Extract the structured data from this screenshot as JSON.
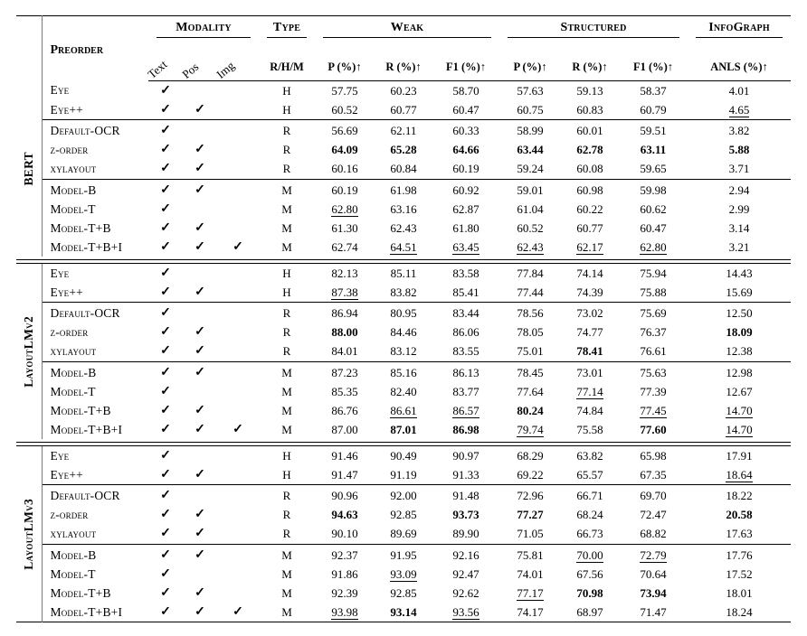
{
  "page": {
    "background": "#ffffff",
    "text_color": "#000000",
    "rule_color": "#7a7a7a",
    "line_color": "#000000"
  },
  "table": {
    "headers": {
      "preorder": "Preorder",
      "modality": "Modality",
      "modality_cols": [
        "Text",
        "Pos",
        "Img"
      ],
      "type": "Type",
      "type_sub": "R/H/M",
      "weak": "Weak",
      "structured": "Structured",
      "infograph": "InfoGraph",
      "metric_cols": [
        "P (%)↑",
        "R (%)↑",
        "F1 (%)↑"
      ],
      "anls": "ANLS (%)↑"
    },
    "checkmark_icon": "✓",
    "groups": [
      {
        "name": "BERT",
        "subgroups": [
          {
            "rows": [
              {
                "label": "Eye",
                "mods": [
                  1,
                  0,
                  0
                ],
                "type": "H",
                "vals": [
                  "57.75",
                  "60.23",
                  "58.70",
                  "57.63",
                  "59.13",
                  "58.37",
                  "4.01"
                ],
                "styles": [
                  "",
                  "",
                  "",
                  "",
                  "",
                  "",
                  ""
                ]
              },
              {
                "label": "Eye++",
                "mods": [
                  1,
                  1,
                  0
                ],
                "type": "H",
                "vals": [
                  "60.52",
                  "60.77",
                  "60.47",
                  "60.75",
                  "60.83",
                  "60.79",
                  "4.65"
                ],
                "styles": [
                  "",
                  "",
                  "",
                  "",
                  "",
                  "",
                  "u"
                ]
              }
            ]
          },
          {
            "rows": [
              {
                "label": "Default-OCR",
                "mods": [
                  1,
                  0,
                  0
                ],
                "type": "R",
                "vals": [
                  "56.69",
                  "62.11",
                  "60.33",
                  "58.99",
                  "60.01",
                  "59.51",
                  "3.82"
                ],
                "styles": [
                  "",
                  "",
                  "",
                  "",
                  "",
                  "",
                  ""
                ]
              },
              {
                "label": "z-order",
                "mods": [
                  1,
                  1,
                  0
                ],
                "type": "R",
                "vals": [
                  "64.09",
                  "65.28",
                  "64.66",
                  "63.44",
                  "62.78",
                  "63.11",
                  "5.88"
                ],
                "styles": [
                  "b",
                  "b",
                  "b",
                  "b",
                  "b",
                  "b",
                  "b"
                ]
              },
              {
                "label": "xylayout",
                "mods": [
                  1,
                  1,
                  0
                ],
                "type": "R",
                "vals": [
                  "60.16",
                  "60.84",
                  "60.19",
                  "59.24",
                  "60.08",
                  "59.65",
                  "3.71"
                ],
                "styles": [
                  "",
                  "",
                  "",
                  "",
                  "",
                  "",
                  ""
                ]
              }
            ]
          },
          {
            "rows": [
              {
                "label": "Model-B",
                "mods": [
                  1,
                  1,
                  0
                ],
                "type": "M",
                "vals": [
                  "60.19",
                  "61.98",
                  "60.92",
                  "59.01",
                  "60.98",
                  "59.98",
                  "2.94"
                ],
                "styles": [
                  "",
                  "",
                  "",
                  "",
                  "",
                  "",
                  ""
                ]
              },
              {
                "label": "Model-T",
                "mods": [
                  1,
                  0,
                  0
                ],
                "type": "M",
                "vals": [
                  "62.80",
                  "63.16",
                  "62.87",
                  "61.04",
                  "60.22",
                  "60.62",
                  "2.99"
                ],
                "styles": [
                  "u",
                  "",
                  "",
                  "",
                  "",
                  "",
                  ""
                ]
              },
              {
                "label": "Model-T+B",
                "mods": [
                  1,
                  1,
                  0
                ],
                "type": "M",
                "vals": [
                  "61.30",
                  "62.43",
                  "61.80",
                  "60.52",
                  "60.77",
                  "60.47",
                  "3.14"
                ],
                "styles": [
                  "",
                  "",
                  "",
                  "",
                  "",
                  "",
                  ""
                ]
              },
              {
                "label": "Model-T+B+I",
                "mods": [
                  1,
                  1,
                  1
                ],
                "type": "M",
                "vals": [
                  "62.74",
                  "64.51",
                  "63.45",
                  "62.43",
                  "62.17",
                  "62.80",
                  "3.21"
                ],
                "styles": [
                  "",
                  "u",
                  "u",
                  "u",
                  "u",
                  "u",
                  ""
                ]
              }
            ]
          }
        ]
      },
      {
        "name": "LayoutLMv2",
        "subgroups": [
          {
            "rows": [
              {
                "label": "Eye",
                "mods": [
                  1,
                  0,
                  0
                ],
                "type": "H",
                "vals": [
                  "82.13",
                  "85.11",
                  "83.58",
                  "77.84",
                  "74.14",
                  "75.94",
                  "14.43"
                ],
                "styles": [
                  "",
                  "",
                  "",
                  "",
                  "",
                  "",
                  ""
                ]
              },
              {
                "label": "Eye++",
                "mods": [
                  1,
                  1,
                  0
                ],
                "type": "H",
                "vals": [
                  "87.38",
                  "83.82",
                  "85.41",
                  "77.44",
                  "74.39",
                  "75.88",
                  "15.69"
                ],
                "styles": [
                  "u",
                  "",
                  "",
                  "",
                  "",
                  "",
                  ""
                ]
              }
            ]
          },
          {
            "rows": [
              {
                "label": "Default-OCR",
                "mods": [
                  1,
                  0,
                  0
                ],
                "type": "R",
                "vals": [
                  "86.94",
                  "80.95",
                  "83.44",
                  "78.56",
                  "73.02",
                  "75.69",
                  "12.50"
                ],
                "styles": [
                  "",
                  "",
                  "",
                  "",
                  "",
                  "",
                  ""
                ]
              },
              {
                "label": "z-order",
                "mods": [
                  1,
                  1,
                  0
                ],
                "type": "R",
                "vals": [
                  "88.00",
                  "84.46",
                  "86.06",
                  "78.05",
                  "74.77",
                  "76.37",
                  "18.09"
                ],
                "styles": [
                  "b",
                  "",
                  "",
                  "",
                  "",
                  "",
                  "b"
                ]
              },
              {
                "label": "xylayout",
                "mods": [
                  1,
                  1,
                  0
                ],
                "type": "R",
                "vals": [
                  "84.01",
                  "83.12",
                  "83.55",
                  "75.01",
                  "78.41",
                  "76.61",
                  "12.38"
                ],
                "styles": [
                  "",
                  "",
                  "",
                  "",
                  "b",
                  "",
                  ""
                ]
              }
            ]
          },
          {
            "rows": [
              {
                "label": "Model-B",
                "mods": [
                  1,
                  1,
                  0
                ],
                "type": "M",
                "vals": [
                  "87.23",
                  "85.16",
                  "86.13",
                  "78.45",
                  "73.01",
                  "75.63",
                  "12.98"
                ],
                "styles": [
                  "",
                  "",
                  "",
                  "",
                  "",
                  "",
                  ""
                ]
              },
              {
                "label": "Model-T",
                "mods": [
                  1,
                  0,
                  0
                ],
                "type": "M",
                "vals": [
                  "85.35",
                  "82.40",
                  "83.77",
                  "77.64",
                  "77.14",
                  "77.39",
                  "12.67"
                ],
                "styles": [
                  "",
                  "",
                  "",
                  "",
                  "u",
                  "",
                  ""
                ]
              },
              {
                "label": "Model-T+B",
                "mods": [
                  1,
                  1,
                  0
                ],
                "type": "M",
                "vals": [
                  "86.76",
                  "86.61",
                  "86.57",
                  "80.24",
                  "74.84",
                  "77.45",
                  "14.70"
                ],
                "styles": [
                  "",
                  "u",
                  "u",
                  "b",
                  "",
                  "u",
                  "u"
                ]
              },
              {
                "label": "Model-T+B+I",
                "mods": [
                  1,
                  1,
                  1
                ],
                "type": "M",
                "vals": [
                  "87.00",
                  "87.01",
                  "86.98",
                  "79.74",
                  "75.58",
                  "77.60",
                  "14.70"
                ],
                "styles": [
                  "",
                  "b",
                  "b",
                  "u",
                  "",
                  "b",
                  "u"
                ]
              }
            ]
          }
        ]
      },
      {
        "name": "LayoutLMv3",
        "subgroups": [
          {
            "rows": [
              {
                "label": "Eye",
                "mods": [
                  1,
                  0,
                  0
                ],
                "type": "H",
                "vals": [
                  "91.46",
                  "90.49",
                  "90.97",
                  "68.29",
                  "63.82",
                  "65.98",
                  "17.91"
                ],
                "styles": [
                  "",
                  "",
                  "",
                  "",
                  "",
                  "",
                  ""
                ]
              },
              {
                "label": "Eye++",
                "mods": [
                  1,
                  1,
                  0
                ],
                "type": "H",
                "vals": [
                  "91.47",
                  "91.19",
                  "91.33",
                  "69.22",
                  "65.57",
                  "67.35",
                  "18.64"
                ],
                "styles": [
                  "",
                  "",
                  "",
                  "",
                  "",
                  "",
                  "u"
                ]
              }
            ]
          },
          {
            "rows": [
              {
                "label": "Default-OCR",
                "mods": [
                  1,
                  0,
                  0
                ],
                "type": "R",
                "vals": [
                  "90.96",
                  "92.00",
                  "91.48",
                  "72.96",
                  "66.71",
                  "69.70",
                  "18.22"
                ],
                "styles": [
                  "",
                  "",
                  "",
                  "",
                  "",
                  "",
                  ""
                ]
              },
              {
                "label": "z-order",
                "mods": [
                  1,
                  1,
                  0
                ],
                "type": "R",
                "vals": [
                  "94.63",
                  "92.85",
                  "93.73",
                  "77.27",
                  "68.24",
                  "72.47",
                  "20.58"
                ],
                "styles": [
                  "b",
                  "",
                  "b",
                  "b",
                  "",
                  "",
                  "b"
                ]
              },
              {
                "label": "xylayout",
                "mods": [
                  1,
                  1,
                  0
                ],
                "type": "R",
                "vals": [
                  "90.10",
                  "89.69",
                  "89.90",
                  "71.05",
                  "66.73",
                  "68.82",
                  "17.63"
                ],
                "styles": [
                  "",
                  "",
                  "",
                  "",
                  "",
                  "",
                  ""
                ]
              }
            ]
          },
          {
            "rows": [
              {
                "label": "Model-B",
                "mods": [
                  1,
                  1,
                  0
                ],
                "type": "M",
                "vals": [
                  "92.37",
                  "91.95",
                  "92.16",
                  "75.81",
                  "70.00",
                  "72.79",
                  "17.76"
                ],
                "styles": [
                  "",
                  "",
                  "",
                  "",
                  "u",
                  "u",
                  ""
                ]
              },
              {
                "label": "Model-T",
                "mods": [
                  1,
                  0,
                  0
                ],
                "type": "M",
                "vals": [
                  "91.86",
                  "93.09",
                  "92.47",
                  "74.01",
                  "67.56",
                  "70.64",
                  "17.52"
                ],
                "styles": [
                  "",
                  "u",
                  "",
                  "",
                  "",
                  "",
                  ""
                ]
              },
              {
                "label": "Model-T+B",
                "mods": [
                  1,
                  1,
                  0
                ],
                "type": "M",
                "vals": [
                  "92.39",
                  "92.85",
                  "92.62",
                  "77.17",
                  "70.98",
                  "73.94",
                  "18.01"
                ],
                "styles": [
                  "",
                  "",
                  "",
                  "u",
                  "b",
                  "b",
                  ""
                ]
              },
              {
                "label": "Model-T+B+I",
                "mods": [
                  1,
                  1,
                  1
                ],
                "type": "M",
                "vals": [
                  "93.98",
                  "93.14",
                  "93.56",
                  "74.17",
                  "68.97",
                  "71.47",
                  "18.24"
                ],
                "styles": [
                  "u",
                  "b",
                  "u",
                  "",
                  "",
                  "",
                  ""
                ]
              }
            ]
          }
        ]
      }
    ]
  }
}
